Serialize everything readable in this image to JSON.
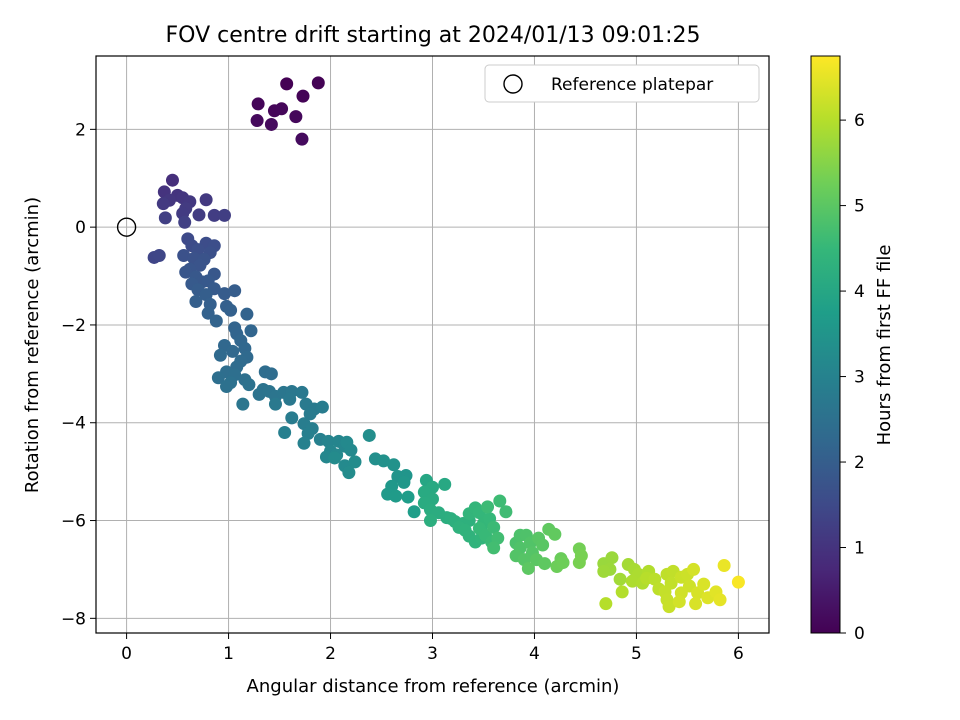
{
  "chart_data": {
    "type": "scatter",
    "title": "FOV centre drift starting at 2024/01/13 09:01:25",
    "xlabel": "Angular distance from reference (arcmin)",
    "ylabel": "Rotation from reference (arcmin)",
    "xlim": [
      -0.3,
      6.3
    ],
    "ylim": [
      -8.3,
      3.5
    ],
    "xticks": [
      0,
      1,
      2,
      3,
      4,
      5,
      6
    ],
    "yticks": [
      -8,
      -6,
      -4,
      -2,
      0,
      2
    ],
    "grid": true,
    "legend": {
      "position": "top-right",
      "entries": [
        "Reference platepar"
      ]
    },
    "reference_point": {
      "x": 0,
      "y": 0,
      "label": "Reference platepar"
    },
    "colorbar": {
      "label": "Hours from first FF file",
      "colormap": "viridis",
      "range": [
        0,
        6.75
      ],
      "ticks": [
        0,
        1,
        2,
        3,
        4,
        5,
        6
      ]
    },
    "series": [
      {
        "color_by": "hours",
        "points": [
          [
            1.57,
            2.93,
            0.0
          ],
          [
            1.88,
            2.95,
            0.03
          ],
          [
            1.73,
            2.68,
            0.05
          ],
          [
            1.29,
            2.52,
            0.08
          ],
          [
            1.45,
            2.38,
            0.1
          ],
          [
            1.52,
            2.42,
            0.12
          ],
          [
            1.66,
            2.26,
            0.14
          ],
          [
            1.28,
            2.18,
            0.16
          ],
          [
            1.42,
            2.1,
            0.18
          ],
          [
            1.72,
            1.8,
            0.2
          ],
          [
            0.45,
            0.96,
            0.9
          ],
          [
            0.37,
            0.72,
            1.0
          ],
          [
            0.5,
            0.65,
            1.02
          ],
          [
            0.55,
            0.6,
            1.05
          ],
          [
            0.42,
            0.55,
            1.08
          ],
          [
            0.62,
            0.52,
            1.1
          ],
          [
            0.78,
            0.56,
            1.12
          ],
          [
            0.36,
            0.48,
            1.14
          ],
          [
            0.58,
            0.38,
            1.16
          ],
          [
            0.55,
            0.28,
            1.18
          ],
          [
            0.71,
            0.25,
            1.2
          ],
          [
            0.86,
            0.24,
            1.22
          ],
          [
            0.96,
            0.24,
            1.24
          ],
          [
            0.38,
            0.19,
            1.26
          ],
          [
            0.57,
            0.1,
            1.28
          ],
          [
            0.27,
            -0.62,
            1.4
          ],
          [
            0.32,
            -0.58,
            1.42
          ],
          [
            0.6,
            -0.24,
            1.5
          ],
          [
            0.64,
            -0.38,
            1.55
          ],
          [
            0.78,
            -0.33,
            1.58
          ],
          [
            0.86,
            -0.38,
            1.6
          ],
          [
            0.7,
            -0.46,
            1.62
          ],
          [
            0.82,
            -0.52,
            1.65
          ],
          [
            0.56,
            -0.58,
            1.67
          ],
          [
            0.66,
            -0.64,
            1.7
          ],
          [
            0.76,
            -0.66,
            1.72
          ],
          [
            0.72,
            -0.78,
            1.75
          ],
          [
            0.62,
            -0.86,
            1.77
          ],
          [
            0.58,
            -0.92,
            1.8
          ],
          [
            0.86,
            -0.96,
            1.82
          ],
          [
            0.68,
            -1.02,
            1.84
          ],
          [
            0.74,
            -1.12,
            1.86
          ],
          [
            0.8,
            -1.1,
            1.88
          ],
          [
            0.64,
            -1.16,
            1.9
          ],
          [
            0.86,
            -1.26,
            1.92
          ],
          [
            0.7,
            -1.28,
            1.94
          ],
          [
            0.96,
            -1.36,
            1.96
          ],
          [
            1.06,
            -1.3,
            1.98
          ],
          [
            0.78,
            -1.38,
            2.0
          ],
          [
            0.68,
            -1.52,
            2.02
          ],
          [
            0.82,
            -1.58,
            2.04
          ],
          [
            0.98,
            -1.62,
            2.06
          ],
          [
            1.02,
            -1.7,
            2.08
          ],
          [
            0.8,
            -1.76,
            2.1
          ],
          [
            1.18,
            -1.78,
            2.12
          ],
          [
            0.88,
            -1.92,
            2.14
          ],
          [
            1.06,
            -2.06,
            2.16
          ],
          [
            1.08,
            -2.18,
            2.18
          ],
          [
            1.22,
            -2.12,
            2.2
          ],
          [
            1.12,
            -2.32,
            2.22
          ],
          [
            0.96,
            -2.42,
            2.24
          ],
          [
            1.16,
            -2.48,
            2.26
          ],
          [
            1.04,
            -2.54,
            2.28
          ],
          [
            0.92,
            -2.62,
            2.3
          ],
          [
            1.18,
            -2.66,
            2.32
          ],
          [
            1.12,
            -2.74,
            2.34
          ],
          [
            1.08,
            -2.86,
            2.36
          ],
          [
            1.36,
            -2.96,
            2.38
          ],
          [
            1.42,
            -3.0,
            2.4
          ],
          [
            0.98,
            -2.96,
            2.42
          ],
          [
            1.06,
            -3.02,
            2.44
          ],
          [
            0.9,
            -3.08,
            2.46
          ],
          [
            1.16,
            -3.12,
            2.48
          ],
          [
            1.02,
            -3.18,
            2.5
          ],
          [
            0.98,
            -3.26,
            2.52
          ],
          [
            1.2,
            -3.22,
            2.54
          ],
          [
            1.34,
            -3.32,
            2.56
          ],
          [
            1.3,
            -3.42,
            2.58
          ],
          [
            1.4,
            -3.36,
            2.6
          ],
          [
            1.46,
            -3.46,
            2.62
          ],
          [
            1.14,
            -3.62,
            2.64
          ],
          [
            1.54,
            -3.38,
            2.66
          ],
          [
            1.62,
            -3.36,
            2.68
          ],
          [
            1.72,
            -3.38,
            2.7
          ],
          [
            1.6,
            -3.52,
            2.72
          ],
          [
            1.46,
            -3.62,
            2.74
          ],
          [
            1.76,
            -3.62,
            2.76
          ],
          [
            1.84,
            -3.72,
            2.78
          ],
          [
            1.8,
            -3.82,
            2.8
          ],
          [
            1.62,
            -3.9,
            2.82
          ],
          [
            1.92,
            -3.68,
            2.84
          ],
          [
            1.74,
            -4.02,
            2.86
          ],
          [
            1.82,
            -4.12,
            2.88
          ],
          [
            1.55,
            -4.2,
            2.9
          ],
          [
            1.78,
            -4.22,
            2.92
          ],
          [
            1.9,
            -4.34,
            2.94
          ],
          [
            1.74,
            -4.42,
            2.96
          ],
          [
            1.98,
            -4.38,
            3.05
          ],
          [
            2.08,
            -4.38,
            3.08
          ],
          [
            2.14,
            -4.48,
            3.1
          ],
          [
            2.0,
            -4.58,
            3.12
          ],
          [
            1.96,
            -4.7,
            3.14
          ],
          [
            2.06,
            -4.66,
            3.16
          ],
          [
            2.16,
            -4.4,
            3.18
          ],
          [
            2.2,
            -4.56,
            3.2
          ],
          [
            2.14,
            -4.88,
            3.22
          ],
          [
            2.04,
            -4.72,
            3.24
          ],
          [
            2.18,
            -5.02,
            3.26
          ],
          [
            2.24,
            -4.8,
            3.28
          ],
          [
            2.38,
            -4.26,
            3.32
          ],
          [
            2.44,
            -4.74,
            3.36
          ],
          [
            2.52,
            -4.78,
            3.4
          ],
          [
            2.62,
            -4.86,
            3.44
          ],
          [
            2.66,
            -5.1,
            3.48
          ],
          [
            2.74,
            -5.08,
            3.52
          ],
          [
            2.72,
            -5.22,
            3.56
          ],
          [
            2.6,
            -5.3,
            3.6
          ],
          [
            2.56,
            -5.46,
            3.64
          ],
          [
            2.64,
            -5.5,
            3.68
          ],
          [
            2.76,
            -5.52,
            3.72
          ],
          [
            2.82,
            -5.82,
            3.76
          ],
          [
            2.94,
            -5.18,
            4.0
          ],
          [
            3.12,
            -5.26,
            4.05
          ],
          [
            3.0,
            -5.32,
            4.08
          ],
          [
            2.92,
            -5.42,
            4.1
          ],
          [
            3.0,
            -5.56,
            4.12
          ],
          [
            2.92,
            -5.64,
            4.14
          ],
          [
            2.98,
            -5.78,
            4.16
          ],
          [
            3.06,
            -5.84,
            4.18
          ],
          [
            3.14,
            -5.94,
            4.2
          ],
          [
            2.98,
            -6.0,
            4.22
          ],
          [
            3.18,
            -5.96,
            4.24
          ],
          [
            3.22,
            -6.02,
            4.26
          ],
          [
            3.3,
            -6.06,
            4.28
          ],
          [
            3.36,
            -6.0,
            4.3
          ],
          [
            3.26,
            -6.14,
            4.32
          ],
          [
            3.32,
            -6.2,
            4.34
          ],
          [
            3.36,
            -6.32,
            4.36
          ],
          [
            3.42,
            -6.44,
            4.38
          ],
          [
            3.48,
            -6.36,
            4.4
          ],
          [
            3.36,
            -5.86,
            4.42
          ],
          [
            3.42,
            -5.74,
            4.44
          ],
          [
            3.46,
            -5.84,
            4.46
          ],
          [
            3.5,
            -6.06,
            4.48
          ],
          [
            3.56,
            -5.96,
            4.5
          ],
          [
            3.46,
            -6.16,
            4.52
          ],
          [
            3.52,
            -6.3,
            4.54
          ],
          [
            3.58,
            -6.44,
            4.56
          ],
          [
            3.6,
            -6.14,
            4.58
          ],
          [
            3.54,
            -5.72,
            4.6
          ],
          [
            3.66,
            -5.6,
            4.62
          ],
          [
            3.72,
            -5.82,
            4.64
          ],
          [
            3.64,
            -6.36,
            4.66
          ],
          [
            3.6,
            -6.56,
            4.68
          ],
          [
            3.82,
            -6.46,
            4.8
          ],
          [
            3.86,
            -6.3,
            4.82
          ],
          [
            3.92,
            -6.3,
            4.84
          ],
          [
            3.86,
            -6.56,
            4.86
          ],
          [
            3.96,
            -6.46,
            4.88
          ],
          [
            3.82,
            -6.72,
            4.9
          ],
          [
            3.98,
            -6.66,
            4.92
          ],
          [
            3.9,
            -6.8,
            4.94
          ],
          [
            4.04,
            -6.36,
            4.96
          ],
          [
            4.08,
            -6.5,
            4.98
          ],
          [
            4.02,
            -6.8,
            5.0
          ],
          [
            3.94,
            -6.98,
            5.02
          ],
          [
            4.1,
            -6.88,
            5.04
          ],
          [
            4.14,
            -6.18,
            5.06
          ],
          [
            4.2,
            -6.28,
            5.08
          ],
          [
            4.26,
            -6.78,
            5.2
          ],
          [
            4.22,
            -6.94,
            5.22
          ],
          [
            4.28,
            -6.86,
            5.24
          ],
          [
            4.44,
            -6.58,
            5.3
          ],
          [
            4.46,
            -6.72,
            5.34
          ],
          [
            4.44,
            -6.86,
            5.36
          ],
          [
            4.68,
            -6.88,
            5.7
          ],
          [
            4.76,
            -6.76,
            5.72
          ],
          [
            4.74,
            -7.0,
            5.74
          ],
          [
            4.68,
            -7.04,
            5.76
          ],
          [
            4.84,
            -7.2,
            5.8
          ],
          [
            4.92,
            -6.9,
            5.82
          ],
          [
            4.98,
            -7.0,
            5.86
          ],
          [
            5.02,
            -7.1,
            5.9
          ],
          [
            4.96,
            -7.24,
            5.92
          ],
          [
            5.06,
            -7.28,
            5.94
          ],
          [
            5.12,
            -7.04,
            5.96
          ],
          [
            4.86,
            -7.46,
            5.98
          ],
          [
            4.7,
            -7.7,
            6.0
          ],
          [
            5.1,
            -7.18,
            6.02
          ],
          [
            5.18,
            -7.2,
            6.05
          ],
          [
            5.22,
            -7.4,
            6.08
          ],
          [
            5.3,
            -7.1,
            6.1
          ],
          [
            5.36,
            -7.04,
            6.12
          ],
          [
            5.34,
            -7.28,
            6.14
          ],
          [
            5.28,
            -7.46,
            6.16
          ],
          [
            5.3,
            -7.62,
            6.18
          ],
          [
            5.32,
            -7.76,
            6.2
          ],
          [
            5.44,
            -7.16,
            6.22
          ],
          [
            5.5,
            -7.1,
            6.24
          ],
          [
            5.52,
            -7.34,
            6.26
          ],
          [
            5.44,
            -7.48,
            6.28
          ],
          [
            5.42,
            -7.66,
            6.3
          ],
          [
            5.56,
            -7.0,
            6.32
          ],
          [
            5.6,
            -7.48,
            6.34
          ],
          [
            5.58,
            -7.7,
            6.36
          ],
          [
            5.66,
            -7.3,
            6.38
          ],
          [
            5.7,
            -7.58,
            6.42
          ],
          [
            5.78,
            -7.46,
            6.46
          ],
          [
            5.82,
            -7.62,
            6.5
          ],
          [
            5.86,
            -6.92,
            6.55
          ],
          [
            6.0,
            -7.26,
            6.7
          ]
        ]
      }
    ]
  }
}
